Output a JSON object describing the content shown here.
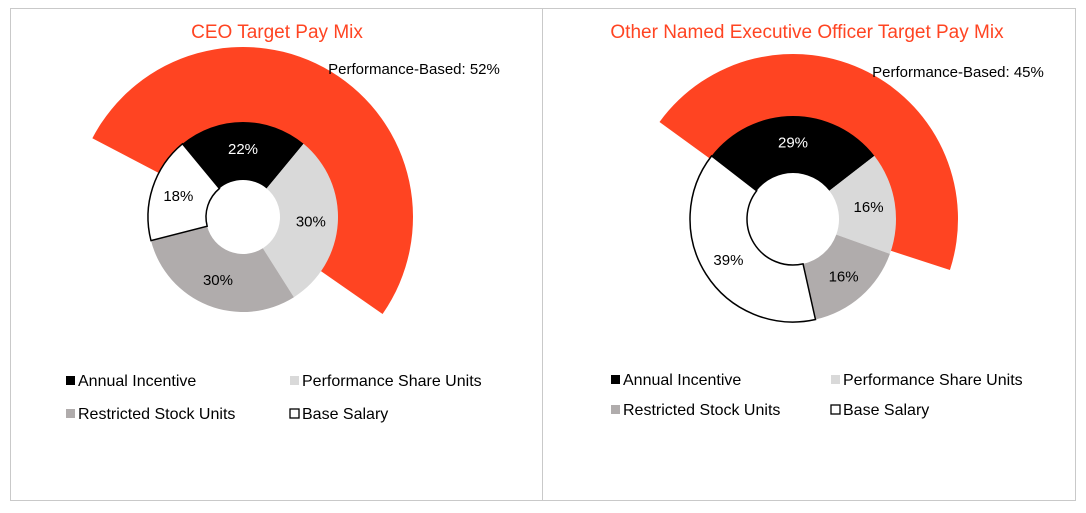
{
  "colors": {
    "accent": "#ff4422",
    "annual_incentive": "#000000",
    "performance_share_units": "#d9d9d9",
    "restricted_stock_units": "#b0acac",
    "base_salary": "#ffffff",
    "panel_border": "#c9c9c9"
  },
  "chart_data": [
    {
      "type": "pie",
      "style": "doughnut",
      "title": "CEO Target Pay Mix",
      "annotation": "Performance-Based: 52%",
      "performance_based_share": 52,
      "categories": [
        "Annual Incentive",
        "Performance Share Units",
        "Restricted Stock Units",
        "Base Salary"
      ],
      "values": [
        22,
        30,
        30,
        18
      ],
      "data_labels": [
        "22%",
        "30%",
        "30%",
        "18%"
      ],
      "legend": [
        "Annual Incentive",
        "Performance Share Units",
        "Restricted Stock Units",
        "Base Salary"
      ],
      "legend_position": "bottom"
    },
    {
      "type": "pie",
      "style": "doughnut",
      "title": "Other Named Executive Officer Target Pay Mix",
      "annotation": "Performance-Based: 45%",
      "performance_based_share": 45,
      "categories": [
        "Annual Incentive",
        "Performance Share Units",
        "Restricted Stock Units",
        "Base Salary"
      ],
      "values": [
        29,
        16,
        16,
        39
      ],
      "data_labels": [
        "29%",
        "16%",
        "16%",
        "39%"
      ],
      "legend": [
        "Annual Incentive",
        "Performance Share Units",
        "Restricted Stock Units",
        "Base Salary"
      ],
      "legend_position": "bottom"
    }
  ]
}
